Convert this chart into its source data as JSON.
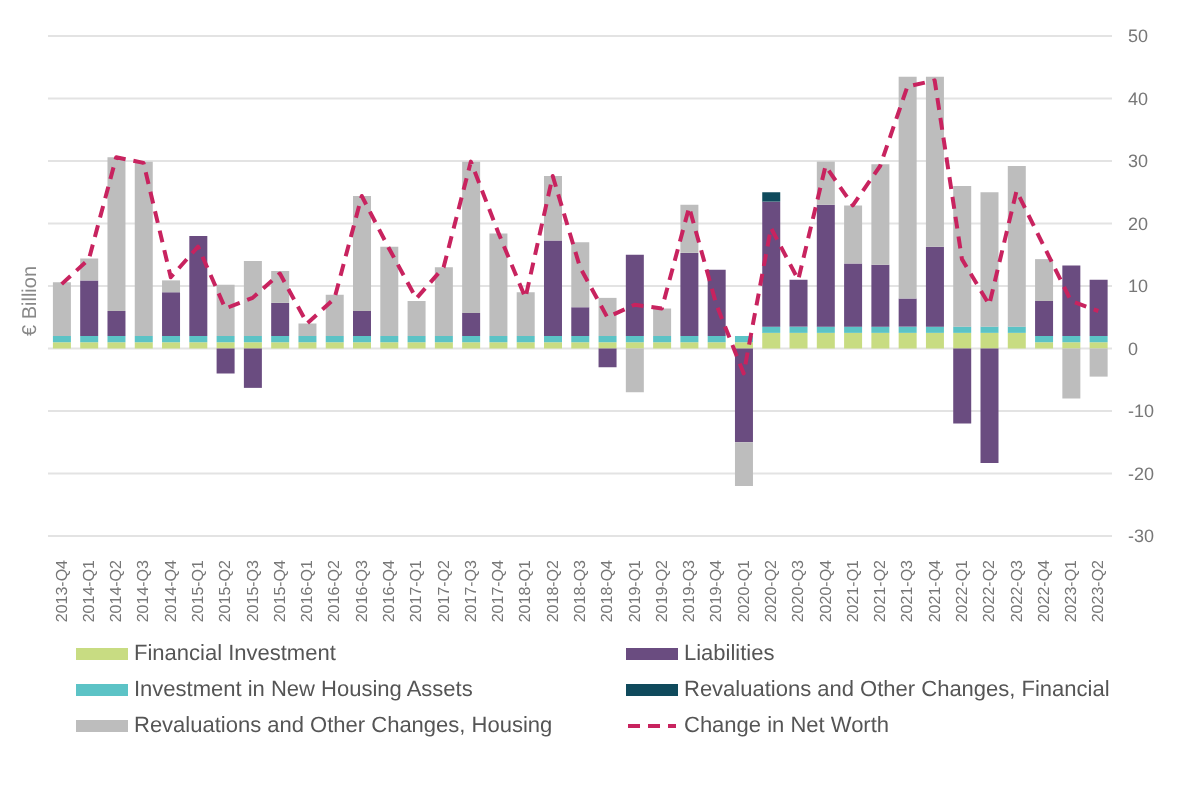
{
  "chart_data": {
    "type": "bar",
    "stacked": true,
    "ylabel": "€ Billion",
    "categories": [
      "2013-Q4",
      "2014-Q1",
      "2014-Q2",
      "2014-Q3",
      "2014-Q4",
      "2015-Q1",
      "2015-Q2",
      "2015-Q3",
      "2015-Q4",
      "2016-Q1",
      "2016-Q2",
      "2016-Q3",
      "2016-Q4",
      "2017-Q1",
      "2017-Q2",
      "2017-Q3",
      "2017-Q4",
      "2018-Q1",
      "2018-Q2",
      "2018-Q3",
      "2018-Q4",
      "2019-Q1",
      "2019-Q2",
      "2019-Q3",
      "2019-Q4",
      "2020-Q1",
      "2020-Q2",
      "2020-Q3",
      "2020-Q4",
      "2021-Q1",
      "2021-Q2",
      "2021-Q3",
      "2021-Q4",
      "2022-Q1",
      "2022-Q2",
      "2022-Q3",
      "2022-Q4",
      "2023-Q1",
      "2023-Q2"
    ],
    "series": [
      {
        "name": "Financial Investment",
        "color": "#c8dc82",
        "values": [
          1,
          1,
          1,
          1,
          1,
          1,
          1,
          1,
          1,
          1,
          1,
          1,
          1,
          1,
          1,
          1,
          1,
          1,
          1,
          1,
          1,
          1,
          1,
          1,
          1,
          1,
          2.5,
          2.5,
          2.5,
          2.5,
          2.5,
          2.5,
          2.5,
          2.5,
          2.5,
          2.5,
          1,
          1,
          1
        ]
      },
      {
        "name": "Investment in New Housing Assets",
        "color": "#5cc3c6",
        "values": [
          1,
          1,
          1,
          1,
          1,
          1,
          1,
          1,
          1,
          1,
          1,
          1,
          1,
          1,
          1,
          1,
          1,
          1,
          1,
          1,
          1,
          1,
          1,
          1,
          1,
          1,
          1,
          1,
          1,
          1,
          1,
          1,
          1,
          1,
          1,
          1,
          1,
          1,
          1
        ]
      },
      {
        "name": "Liabilities",
        "color": "#6a4c80",
        "values": [
          0,
          8.9,
          4,
          0,
          7,
          16,
          -4,
          -6.3,
          5.3,
          0,
          0,
          4,
          0,
          0,
          0,
          3.7,
          0,
          0,
          15.3,
          4.6,
          -3,
          13,
          0,
          13.3,
          10.6,
          -15,
          20,
          7.5,
          19.5,
          10.1,
          9.9,
          4.5,
          12.8,
          -12,
          -18.3,
          0,
          5.6,
          11.3,
          9
        ]
      },
      {
        "name": "Revaluations and Other Changes, Financial",
        "color": "#0f4a5c",
        "values": [
          0,
          0,
          0,
          0,
          0,
          0,
          0,
          0,
          0,
          0,
          0,
          0,
          0,
          0,
          0,
          0,
          0,
          0,
          0,
          0,
          0,
          0,
          0,
          0,
          0,
          0,
          1.5,
          0,
          0,
          0,
          0,
          0,
          0,
          0,
          0,
          0,
          0,
          0,
          0
        ]
      },
      {
        "name": "Revaluations and Other Changes, Housing",
        "color": "#bdbdbd",
        "values": [
          8.6,
          3.5,
          24.6,
          27.9,
          1.9,
          0,
          8.2,
          12,
          5.1,
          2,
          6.6,
          18.4,
          14.3,
          5.6,
          11,
          24.2,
          16.4,
          7,
          10.3,
          10.4,
          6.1,
          -7,
          4.4,
          7.7,
          0,
          -7,
          0,
          0,
          6.9,
          9.3,
          16.1,
          35.5,
          27.2,
          22.5,
          21.5,
          25.7,
          6.7,
          -8,
          -4.5
        ]
      },
      {
        "name": "Change in Net Worth",
        "type": "line",
        "color": "#c8235f",
        "line_style": "dashed",
        "marker": "none",
        "values": [
          10.3,
          14.3,
          30.6,
          29.7,
          11.4,
          16.3,
          6.4,
          8.1,
          12,
          4,
          8,
          24.4,
          16,
          8,
          13,
          29.9,
          18.6,
          8.1,
          27.6,
          13,
          5,
          7,
          6.4,
          22.6,
          7,
          -4,
          19.3,
          11,
          29.2,
          22.9,
          29.2,
          41.9,
          42.9,
          14.3,
          7,
          25.2,
          16.4,
          7.6,
          6
        ]
      }
    ],
    "ylim": [
      -30,
      50
    ],
    "yticks": [
      -30,
      -20,
      -10,
      0,
      10,
      20,
      30,
      40,
      50
    ],
    "grid": "y",
    "legend": "bottom"
  }
}
